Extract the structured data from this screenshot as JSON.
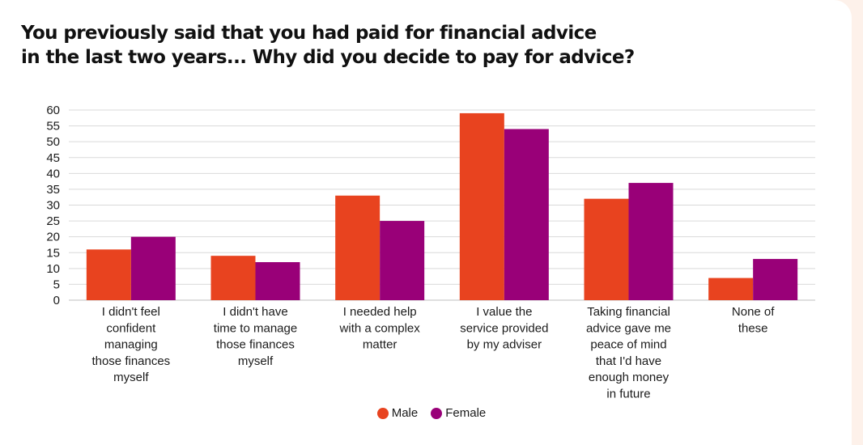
{
  "title_lines": [
    "You previously said that you had paid for financial advice",
    "in the last two years... Why did you decide to pay for advice?"
  ],
  "chart_data": {
    "type": "bar",
    "categories": [
      [
        "I didn't feel",
        "confident",
        "managing",
        "those finances",
        "myself"
      ],
      [
        "I didn't have",
        "time to manage",
        "those finances",
        "myself"
      ],
      [
        "I needed help",
        "with a complex",
        "matter"
      ],
      [
        "I value the",
        "service provided",
        "by my adviser"
      ],
      [
        "Taking financial",
        "advice gave me",
        "peace of mind",
        "that I'd have",
        "enough money",
        "in future"
      ],
      [
        "None of",
        "these"
      ]
    ],
    "series": [
      {
        "name": "Male",
        "color": "#e8431f",
        "values": [
          16,
          14,
          33,
          59,
          32,
          7
        ]
      },
      {
        "name": "Female",
        "color": "#990078",
        "values": [
          20,
          12,
          25,
          54,
          37,
          13
        ]
      }
    ],
    "ylim": [
      0,
      60
    ],
    "yticks": [
      0,
      5,
      10,
      15,
      20,
      25,
      30,
      35,
      40,
      45,
      50,
      55,
      60
    ],
    "grid": true,
    "legend_position": "bottom-center"
  }
}
